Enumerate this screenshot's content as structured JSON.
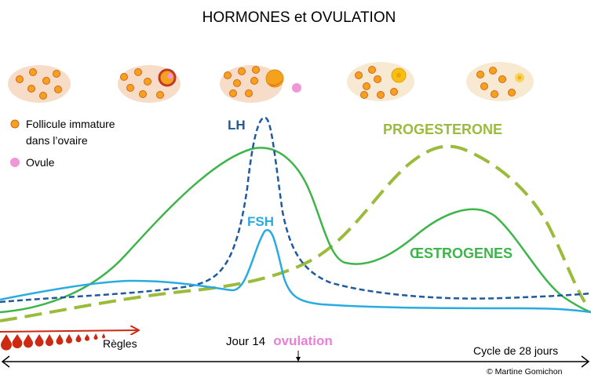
{
  "title": "HORMONES et OVULATION",
  "legend": {
    "follicle_line1": "Follicule immature",
    "follicle_line2": "dans l’ovaire",
    "ovule": "Ovule"
  },
  "labels": {
    "lh": "LH",
    "fsh": "FSH",
    "progesterone": "PROGESTERONE",
    "oestrogenes": "ŒSTROGENES",
    "regles": "Règles",
    "jour14": "Jour 14",
    "ovulation": "ovulation",
    "cycle": "Cycle de 28 jours",
    "credit": "© Martine Gomichon"
  },
  "colors": {
    "lh": "#1f5a9c",
    "fsh": "#29abe2",
    "progesterone": "#9bbb3a",
    "oestrogenes": "#3db54a",
    "ovulation": "#ea7ed9",
    "regles": "#cc2a12",
    "follicle": "#f4a21c",
    "ovary": "#f7dcc8",
    "ovary_late": "#f8ead2",
    "ovule": "#f096d8"
  }
}
